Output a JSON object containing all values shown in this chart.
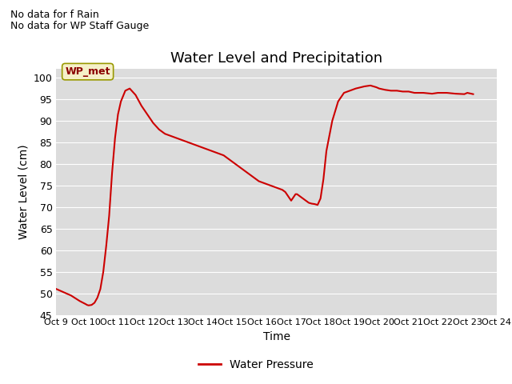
{
  "title": "Water Level and Precipitation",
  "xlabel": "Time",
  "ylabel": "Water Level (cm)",
  "ylim": [
    45,
    102
  ],
  "yticks": [
    45,
    50,
    55,
    60,
    65,
    70,
    75,
    80,
    85,
    90,
    95,
    100
  ],
  "plot_bg_color": "#dcdcdc",
  "line_color": "#cc0000",
  "line_width": 1.5,
  "legend_label": "Water Pressure",
  "no_data_text1": "No data for f Rain",
  "no_data_text2": "No data for WP Staff Gauge",
  "wp_met_label": "WP_met",
  "x_tick_labels": [
    "Oct 9",
    "Oct 10",
    "Oct 11",
    "Oct 12",
    "Oct 13",
    "Oct 14",
    "Oct 15",
    "Oct 16",
    "Oct 17",
    "Oct 18",
    "Oct 19",
    "Oct 20",
    "Oct 21",
    "Oct 22",
    "Oct 23",
    "Oct 24"
  ],
  "x_values": [
    9.0,
    9.5,
    9.8,
    10.0,
    10.05,
    10.1,
    10.2,
    10.3,
    10.4,
    10.5,
    10.6,
    10.7,
    10.8,
    10.9,
    11.0,
    11.1,
    11.2,
    11.35,
    11.5,
    11.7,
    11.9,
    12.1,
    12.3,
    12.5,
    12.7,
    12.9,
    13.1,
    13.3,
    13.5,
    13.7,
    13.9,
    14.1,
    14.3,
    14.5,
    14.7,
    14.9,
    15.1,
    15.3,
    15.5,
    15.7,
    15.9,
    16.1,
    16.3,
    16.5,
    16.7,
    16.8,
    16.85,
    16.9,
    16.95,
    17.0,
    17.05,
    17.1,
    17.15,
    17.2,
    17.3,
    17.4,
    17.5,
    17.6,
    17.7,
    17.8,
    17.85,
    17.9,
    18.0,
    18.1,
    18.2,
    18.4,
    18.6,
    18.8,
    19.0,
    19.2,
    19.5,
    19.7,
    19.9,
    20.0,
    20.2,
    20.4,
    20.6,
    20.8,
    21.0,
    21.2,
    21.5,
    21.8,
    22.0,
    22.3,
    22.6,
    22.9,
    23.0,
    23.2
  ],
  "y_values": [
    51.0,
    49.5,
    48.2,
    47.5,
    47.3,
    47.2,
    47.3,
    47.8,
    49.0,
    51.0,
    55.0,
    61.0,
    68.0,
    78.0,
    86.0,
    91.5,
    94.5,
    97.0,
    97.5,
    96.0,
    93.5,
    91.5,
    89.5,
    88.0,
    87.0,
    86.5,
    86.0,
    85.5,
    85.0,
    84.5,
    84.0,
    83.5,
    83.0,
    82.5,
    82.0,
    81.0,
    80.0,
    79.0,
    78.0,
    77.0,
    76.0,
    75.5,
    75.0,
    74.5,
    74.0,
    73.5,
    73.0,
    72.5,
    72.0,
    71.5,
    72.0,
    72.5,
    73.0,
    73.0,
    72.5,
    72.0,
    71.5,
    71.0,
    70.8,
    70.7,
    70.6,
    70.5,
    72.0,
    76.5,
    83.0,
    90.0,
    94.5,
    96.5,
    97.0,
    97.5,
    98.0,
    98.2,
    97.8,
    97.5,
    97.2,
    97.0,
    97.0,
    96.8,
    96.8,
    96.5,
    96.5,
    96.3,
    96.5,
    96.5,
    96.3,
    96.2,
    96.5,
    96.2
  ]
}
